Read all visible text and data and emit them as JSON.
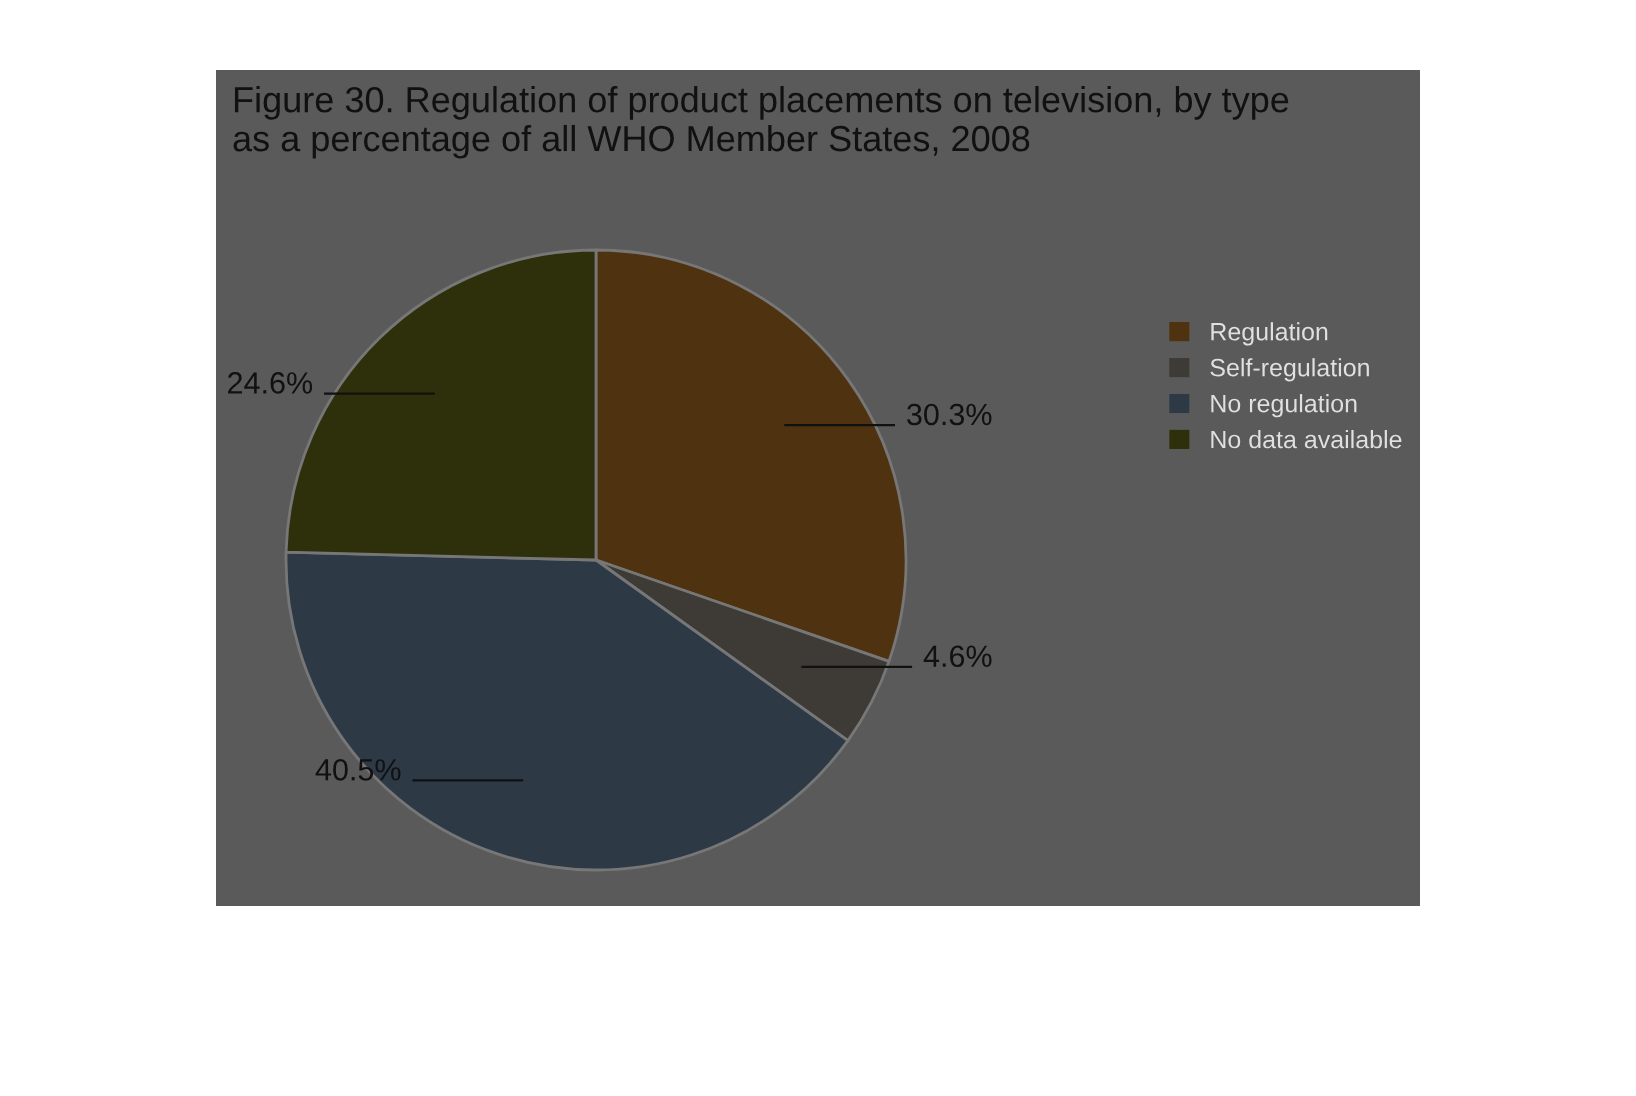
{
  "chart_data": {
    "type": "pie",
    "title": "Figure 30. Regulation of product placements on television, by type\nas a percentage of all WHO Member States, 2008",
    "categories": [
      "Regulation",
      "Self-regulation",
      "No regulation",
      "No data available"
    ],
    "values": [
      30.3,
      4.6,
      40.5,
      24.6
    ],
    "colors": [
      "#4f3210",
      "#3e3a36",
      "#2d3a46",
      "#2e300c"
    ],
    "value_labels": [
      "30.3%",
      "4.6%",
      "40.5%",
      "24.6%"
    ],
    "legend": "right"
  }
}
